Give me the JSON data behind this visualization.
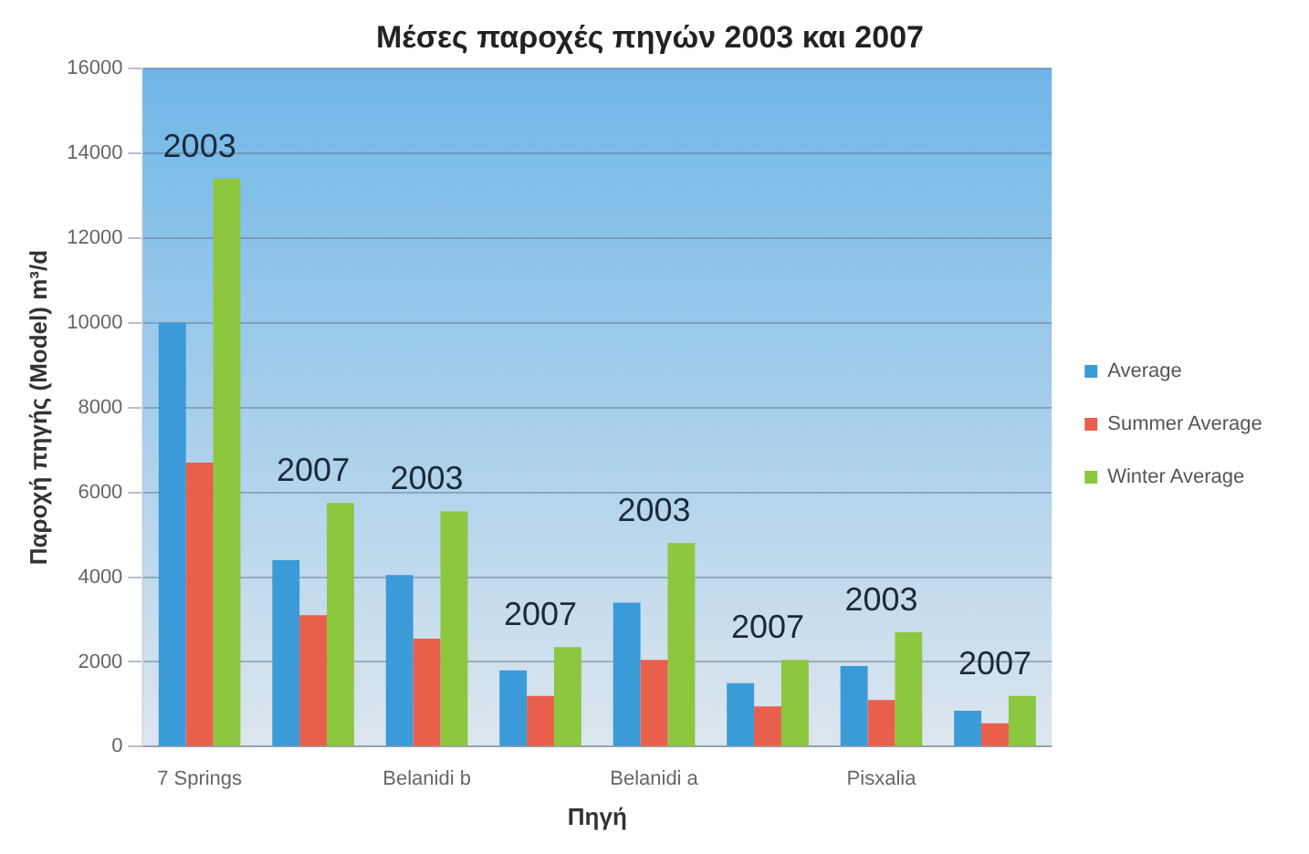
{
  "chart_data": {
    "type": "bar",
    "title": "Μέσες παροχές πηγών 2003 και 2007",
    "xlabel": "Πηγή",
    "ylabel": "Παροχή πηγής (Model) m³/d",
    "categories": [
      "7 Springs",
      null,
      "Belanidi b",
      null,
      "Belanidi a",
      null,
      "Pisxalia",
      null
    ],
    "series": [
      {
        "name": "Average",
        "color": "#3b9ad8",
        "values": [
          10000,
          4400,
          4050,
          1800,
          3400,
          1500,
          1900,
          850
        ]
      },
      {
        "name": "Summer Average",
        "color": "#e8604c",
        "values": [
          6700,
          3100,
          2550,
          1200,
          2050,
          950,
          1100,
          550
        ]
      },
      {
        "name": "Winter Average",
        "color": "#8dc63f",
        "values": [
          13400,
          5750,
          5550,
          2350,
          4800,
          2050,
          2700,
          1200
        ]
      }
    ],
    "annotations": [
      "2003",
      "2007",
      "2003",
      "2007",
      "2003",
      "2007",
      "2003",
      "2007"
    ],
    "ylim": [
      0,
      16000
    ],
    "yticks": [
      0,
      2000,
      4000,
      6000,
      8000,
      10000,
      12000,
      14000,
      16000
    ],
    "grid": "y",
    "legend": "right"
  }
}
